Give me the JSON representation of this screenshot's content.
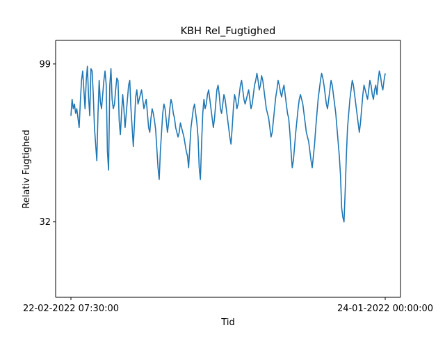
{
  "chart_data": {
    "type": "line",
    "title": "KBH Rel_Fugtighed",
    "xlabel": "Tid",
    "ylabel": "Relativ Fugtighed",
    "x_tick_labels": [
      "22-02-2022 07:30:00",
      "24-01-2022 00:00:00"
    ],
    "y_ticks": [
      32,
      99
    ],
    "ylim": [
      0,
      109
    ],
    "grid": false,
    "legend": "none",
    "series": [
      {
        "color": "#1f77b4",
        "values": [
          77,
          84,
          80,
          82,
          78,
          80,
          76,
          72,
          83,
          92,
          96,
          88,
          80,
          92,
          98,
          85,
          77,
          97,
          96,
          86,
          72,
          65,
          58,
          78,
          92,
          83,
          80,
          86,
          92,
          96,
          90,
          62,
          54,
          90,
          97,
          84,
          80,
          82,
          88,
          93,
          92,
          75,
          69,
          78,
          86,
          80,
          72,
          78,
          84,
          90,
          92,
          80,
          72,
          64,
          74,
          85,
          88,
          82,
          84,
          86,
          88,
          84,
          80,
          82,
          84,
          78,
          72,
          70,
          76,
          80,
          78,
          75,
          71,
          63,
          55,
          50,
          62,
          70,
          78,
          82,
          80,
          75,
          70,
          74,
          80,
          84,
          82,
          78,
          76,
          72,
          70,
          68,
          70,
          74,
          72,
          70,
          68,
          65,
          62,
          60,
          55,
          64,
          72,
          76,
          80,
          82,
          78,
          74,
          68,
          55,
          50,
          65,
          78,
          84,
          80,
          82,
          86,
          88,
          84,
          80,
          76,
          72,
          76,
          82,
          88,
          90,
          86,
          80,
          78,
          82,
          86,
          84,
          80,
          76,
          72,
          68,
          65,
          72,
          80,
          86,
          84,
          80,
          82,
          86,
          90,
          92,
          88,
          84,
          82,
          84,
          86,
          88,
          84,
          80,
          82,
          86,
          90,
          92,
          95,
          92,
          88,
          90,
          94,
          92,
          88,
          84,
          80,
          78,
          76,
          72,
          68,
          70,
          75,
          80,
          85,
          88,
          92,
          90,
          87,
          85,
          88,
          90,
          86,
          82,
          78,
          76,
          70,
          62,
          55,
          58,
          64,
          70,
          75,
          80,
          84,
          86,
          84,
          82,
          78,
          74,
          70,
          68,
          66,
          62,
          58,
          55,
          60,
          65,
          72,
          78,
          84,
          88,
          92,
          95,
          93,
          90,
          86,
          82,
          80,
          84,
          88,
          92,
          90,
          86,
          82,
          78,
          72,
          66,
          60,
          52,
          38,
          34,
          32,
          45,
          60,
          72,
          78,
          84,
          88,
          92,
          90,
          86,
          82,
          78,
          74,
          70,
          74,
          80,
          86,
          90,
          88,
          86,
          84,
          88,
          92,
          90,
          86,
          84,
          88,
          90,
          86,
          92,
          96,
          94,
          90,
          88,
          92,
          95
        ]
      }
    ]
  }
}
